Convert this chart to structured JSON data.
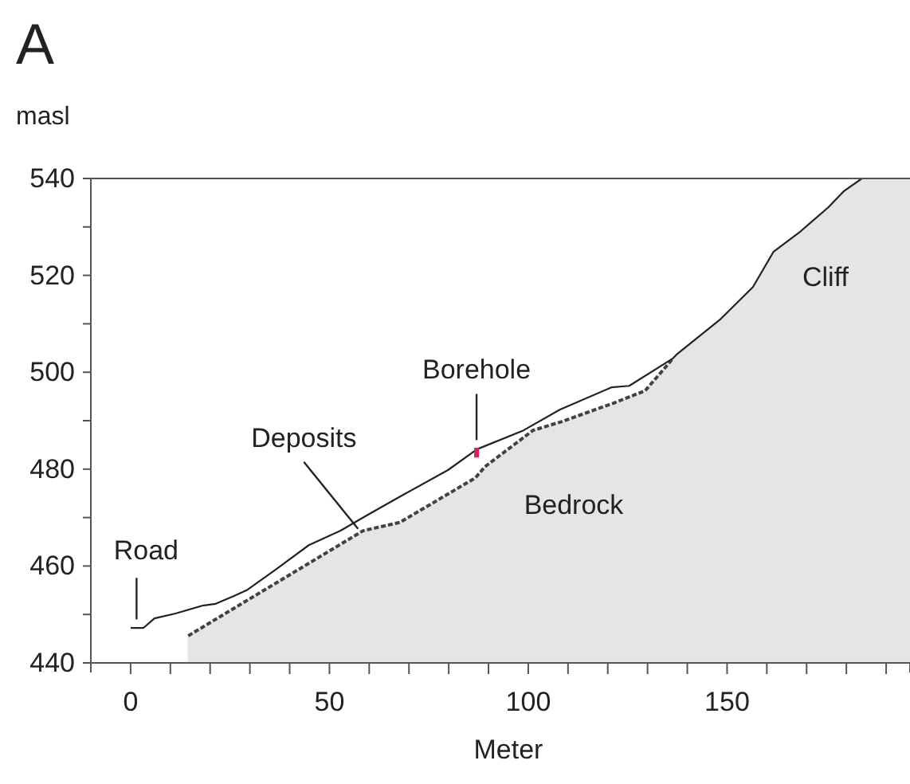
{
  "chart_data": {
    "type": "line",
    "title": "A",
    "ylabel": "masl",
    "xlabel": "Meter",
    "xlim": [
      -10,
      196
    ],
    "ylim": [
      440,
      540
    ],
    "xticks": [
      0,
      {
        "value": 10,
        "label": null
      },
      {
        "value": 20,
        "label": null
      },
      {
        "value": 30,
        "label": null
      },
      {
        "value": 40,
        "label": null
      },
      50,
      {
        "value": 60,
        "label": null
      },
      {
        "value": 70,
        "label": null
      },
      {
        "value": 80,
        "label": null
      },
      {
        "value": 90,
        "label": null
      },
      100,
      {
        "value": 110,
        "label": null
      },
      {
        "value": 120,
        "label": null
      },
      {
        "value": 130,
        "label": null
      },
      {
        "value": 140,
        "label": null
      },
      150,
      {
        "value": 160,
        "label": null
      },
      {
        "value": 170,
        "label": null
      },
      {
        "value": 180,
        "label": null
      },
      {
        "value": 190,
        "label": null
      }
    ],
    "yticks": [
      440,
      {
        "value": 450,
        "label": null
      },
      460,
      {
        "value": 470,
        "label": null
      },
      480,
      {
        "value": 490,
        "label": null
      },
      500,
      {
        "value": 510,
        "label": null
      },
      520,
      {
        "value": 530,
        "label": null
      },
      540
    ],
    "grid": false,
    "marker": "none",
    "series": [
      {
        "type": "area",
        "color": "#e4e5e7",
        "x": [
          136.3,
          137.5,
          148.4,
          156.5,
          161.7,
          168.5,
          175.4,
          179.4,
          183.9,
          196
        ],
        "values": [
          502.8,
          503.8,
          511,
          517.6,
          524.9,
          529.1,
          534,
          537.4,
          540,
          540
        ]
      },
      {
        "type": "area",
        "color": "#e4e5e7",
        "line_style": "dotted",
        "x": [
          14.5,
          58.5,
          67.7,
          86.7,
          89.1,
          101.2,
          108,
          121.4,
          129.4,
          135,
          136.3
        ],
        "values": [
          445.6,
          467.3,
          469,
          478.2,
          480.5,
          488,
          489.7,
          493.6,
          496.2,
          501.5,
          502.8
        ]
      },
      {
        "color": "#222222",
        "line_style": "solid",
        "x": [
          0,
          3.2,
          6,
          11.3,
          18,
          21.4,
          26,
          29.4,
          36.7,
          44.8,
          52.8,
          59.7,
          69,
          79.8,
          87.1,
          98.8,
          108,
          121,
          125.4,
          136.3,
          137.5,
          148.4,
          156.5,
          161.7,
          168.5,
          175.4,
          179.4,
          183.9
        ],
        "values": [
          447.2,
          447.2,
          449.2,
          450.2,
          451.8,
          452.2,
          453.8,
          455.1,
          459.4,
          464.3,
          467.3,
          470.6,
          474.9,
          479.8,
          484.1,
          488,
          492.3,
          496.9,
          497.2,
          502.8,
          503.8,
          511,
          517.6,
          524.9,
          529.1,
          534,
          537.4,
          540
        ]
      },
      {
        "color": "#d6245a",
        "line_style": "solid",
        "x": [
          87,
          87
        ],
        "values": [
          484.4,
          482.4
        ]
      }
    ],
    "annotations": [
      {
        "text": "Road",
        "x": 1.5,
        "y": 448
      },
      {
        "text": "Deposits",
        "x": 58,
        "y": 467
      },
      {
        "text": "Borehole",
        "x": 87,
        "y": 485
      },
      "Bedrock",
      "Cliff"
    ]
  }
}
